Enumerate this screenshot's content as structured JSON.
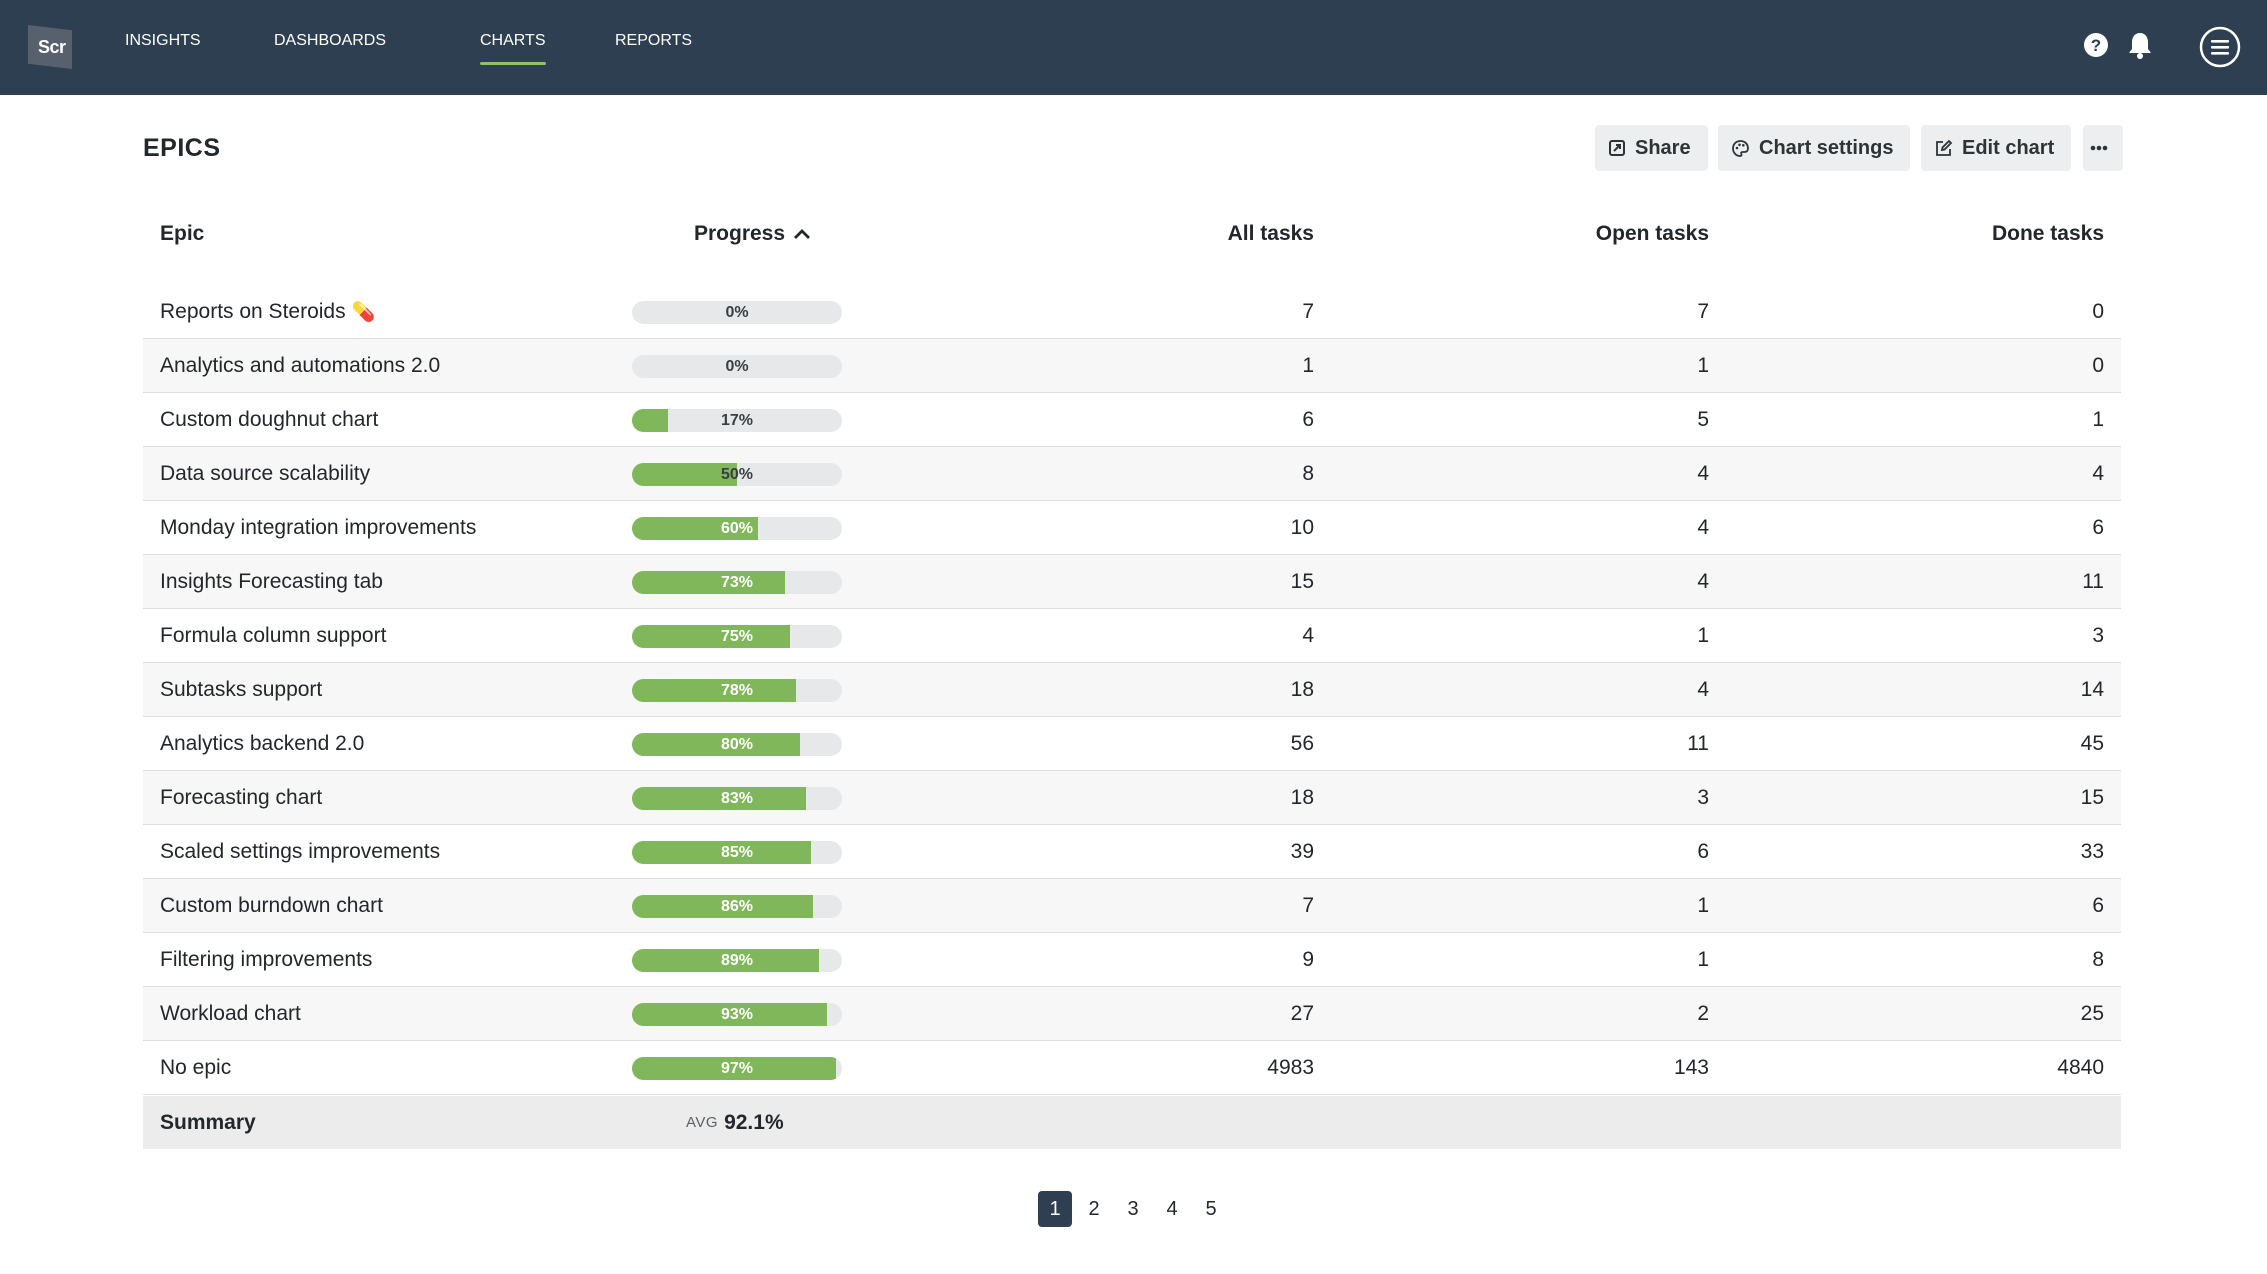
{
  "nav": {
    "logo_text": "Scr",
    "items": [
      {
        "label": "INSIGHTS"
      },
      {
        "label": "DASHBOARDS"
      },
      {
        "label": "CHARTS"
      },
      {
        "label": "REPORTS"
      }
    ],
    "active": "CHARTS",
    "icons": [
      "help-icon",
      "bell-icon",
      "menu-icon"
    ]
  },
  "page": {
    "title": "EPICS",
    "buttons": {
      "share": "Share",
      "chart_settings": "Chart settings",
      "edit_chart": "Edit chart"
    }
  },
  "table": {
    "headers": {
      "epic": "Epic",
      "progress": "Progress",
      "all_tasks": "All tasks",
      "open_tasks": "Open tasks",
      "done_tasks": "Done tasks"
    },
    "sort": {
      "column": "progress",
      "direction": "ascending"
    },
    "rows": [
      {
        "epic": "Reports on Steroids",
        "emoji": "💊",
        "progress": 0,
        "progress_label": "0%",
        "all": "7",
        "open": "7",
        "done": "0"
      },
      {
        "epic": "Analytics and automations 2.0",
        "progress": 0,
        "progress_label": "0%",
        "all": "1",
        "open": "1",
        "done": "0"
      },
      {
        "epic": "Custom doughnut chart",
        "progress": 17,
        "progress_label": "17%",
        "all": "6",
        "open": "5",
        "done": "1"
      },
      {
        "epic": "Data source scalability",
        "progress": 50,
        "progress_label": "50%",
        "all": "8",
        "open": "4",
        "done": "4"
      },
      {
        "epic": "Monday integration improvements",
        "progress": 60,
        "progress_label": "60%",
        "all": "10",
        "open": "4",
        "done": "6"
      },
      {
        "epic": "Insights Forecasting tab",
        "progress": 73,
        "progress_label": "73%",
        "all": "15",
        "open": "4",
        "done": "11"
      },
      {
        "epic": "Formula column support",
        "progress": 75,
        "progress_label": "75%",
        "all": "4",
        "open": "1",
        "done": "3"
      },
      {
        "epic": "Subtasks support",
        "progress": 78,
        "progress_label": "78%",
        "all": "18",
        "open": "4",
        "done": "14"
      },
      {
        "epic": "Analytics backend 2.0",
        "progress": 80,
        "progress_label": "80%",
        "all": "56",
        "open": "11",
        "done": "45"
      },
      {
        "epic": "Forecasting chart",
        "progress": 83,
        "progress_label": "83%",
        "all": "18",
        "open": "3",
        "done": "15"
      },
      {
        "epic": "Scaled settings improvements",
        "progress": 85,
        "progress_label": "85%",
        "all": "39",
        "open": "6",
        "done": "33"
      },
      {
        "epic": "Custom burndown chart",
        "progress": 86,
        "progress_label": "86%",
        "all": "7",
        "open": "1",
        "done": "6"
      },
      {
        "epic": "Filtering improvements",
        "progress": 89,
        "progress_label": "89%",
        "all": "9",
        "open": "1",
        "done": "8"
      },
      {
        "epic": "Workload chart",
        "progress": 93,
        "progress_label": "93%",
        "all": "27",
        "open": "2",
        "done": "25"
      },
      {
        "epic": "No epic",
        "progress": 97,
        "progress_label": "97%",
        "all": "4983",
        "open": "143",
        "done": "4840"
      }
    ],
    "summary": {
      "label": "Summary",
      "avg_prefix": "AVG",
      "avg_value": "92.1%"
    }
  },
  "pagination": {
    "pages": [
      "1",
      "2",
      "3",
      "4",
      "5"
    ],
    "current": "1"
  },
  "colors": {
    "topbar": "#2e3f51",
    "accent": "#8dc26f",
    "progress_fill": "#80b75b",
    "progress_track": "#e7e8ea"
  }
}
